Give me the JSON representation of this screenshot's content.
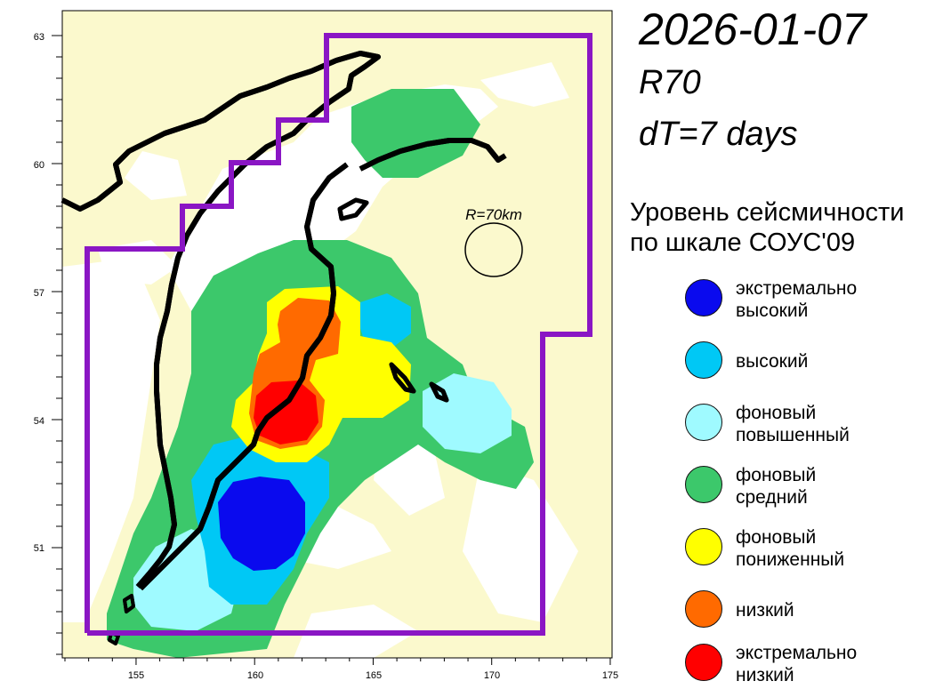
{
  "header": {
    "date": "2026-01-07",
    "model": "R70",
    "dt": "dT=7 days"
  },
  "map": {
    "radius_label": "R=70km",
    "x_ticks": [
      "155",
      "160",
      "165",
      "170",
      "175"
    ],
    "y_ticks": [
      "51",
      "54",
      "57",
      "60",
      "63"
    ]
  },
  "legend": {
    "title": "Уровень сейсмичности\nпо шкале СОУС'09",
    "items": [
      {
        "label": "экстремально\nвысокий",
        "color": "#0a0aee"
      },
      {
        "label": "высокий",
        "color": "#00c8f5"
      },
      {
        "label": "фоновый\nповышенный",
        "color": "#9ffaff"
      },
      {
        "label": "фоновый\nсредний",
        "color": "#3cc86b"
      },
      {
        "label": "фоновый\nпониженный",
        "color": "#ffff00"
      },
      {
        "label": "низкий",
        "color": "#ff6a00"
      },
      {
        "label": "экстремально\nнизкий",
        "color": "#ff0000"
      }
    ]
  },
  "colors": {
    "background_land": "#fbf9cd",
    "region_outline": "#8a16c4"
  }
}
